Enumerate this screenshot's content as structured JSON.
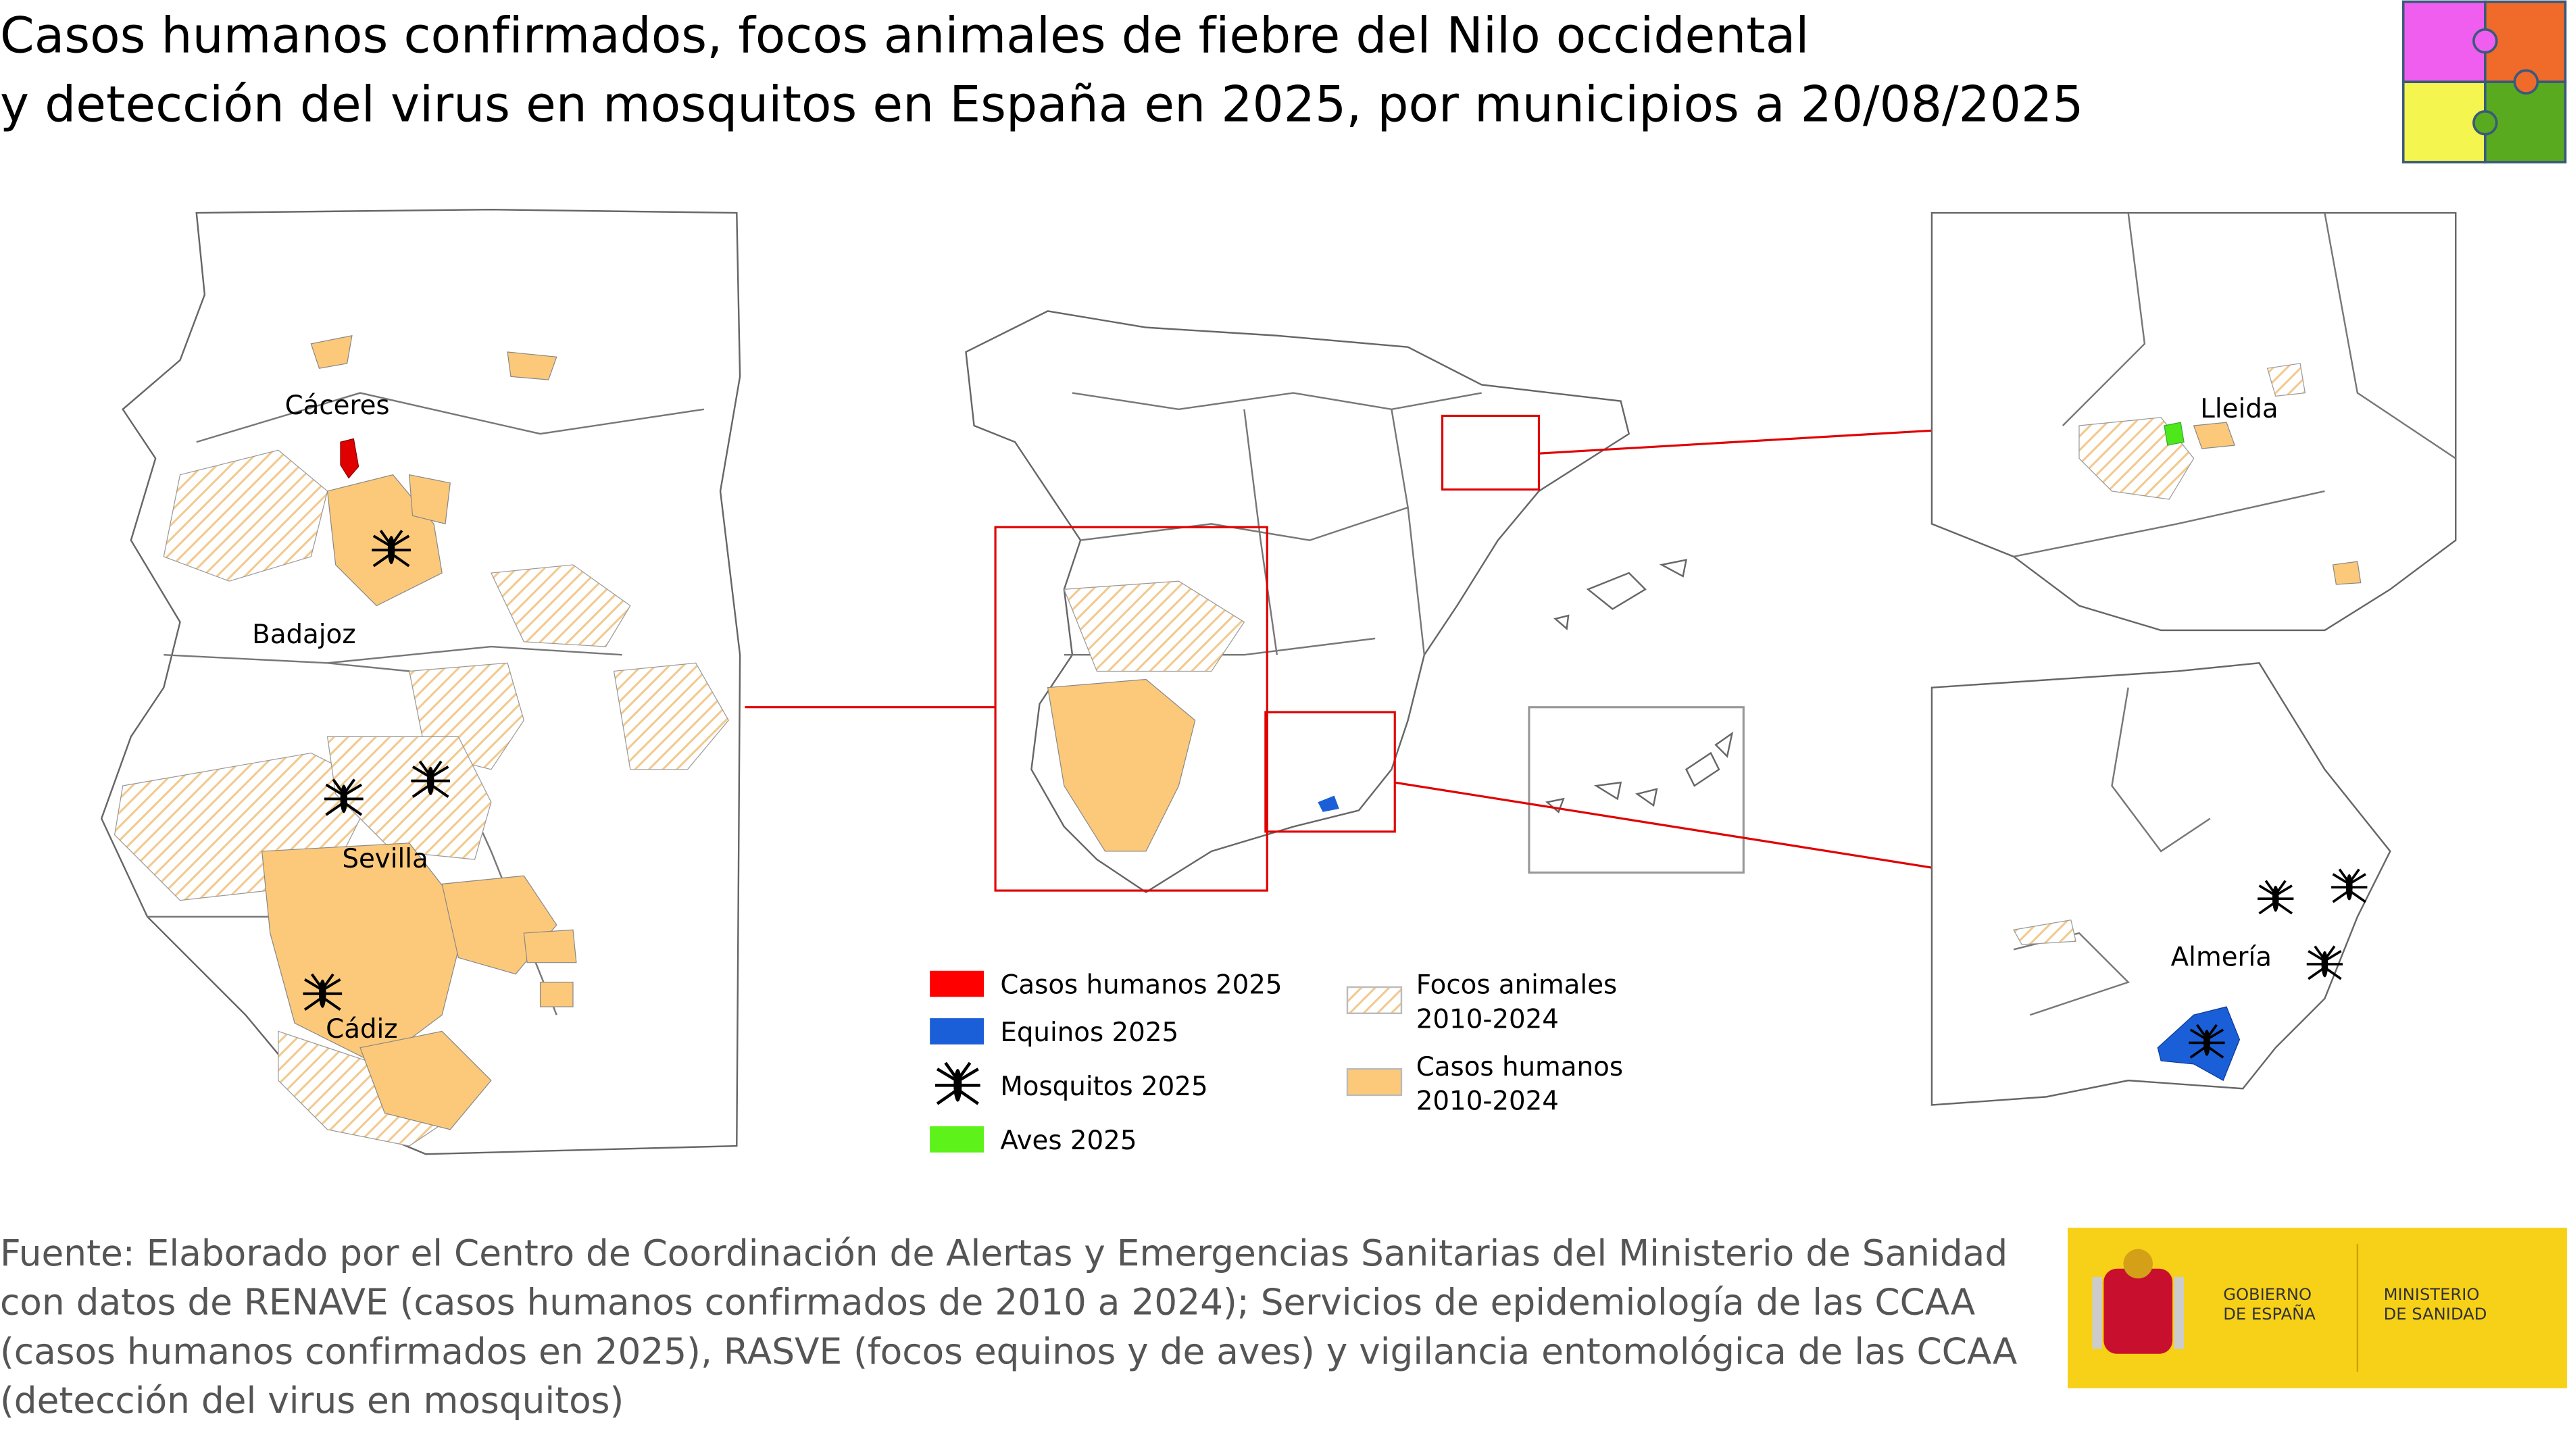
{
  "header": {
    "title_lines": [
      "Casos humanos confirmados, focos animales de fiebre del Nilo occidental",
      "y detección del virus en mosquitos en España en 2025, por municipios a 20/08/2025"
    ]
  },
  "maps": {
    "left": {
      "labels": [
        "Cáceres",
        "Badajoz",
        "Sevilla",
        "Cádiz"
      ]
    },
    "right_top": {
      "labels": [
        "Lleida"
      ]
    },
    "right_bottom": {
      "labels": [
        "Almería"
      ]
    }
  },
  "legend": {
    "items": [
      {
        "lines": [
          "Casos humanos 2025"
        ]
      },
      {
        "lines": [
          "Equinos 2025"
        ]
      },
      {
        "lines": [
          "Mosquitos 2025"
        ]
      },
      {
        "lines": [
          "Aves 2025"
        ]
      },
      {
        "lines": [
          "Focos animales",
          "2010-2024"
        ]
      },
      {
        "lines": [
          "Casos humanos",
          "2010-2024"
        ]
      }
    ]
  },
  "footer": {
    "source_lines": [
      "Fuente: Elaborado por el Centro de Coordinación de Alertas y Emergencias Sanitarias del Ministerio de Sanidad",
      "con datos de RENAVE (casos humanos confirmados de 2010 a 2024); Servicios de epidemiología de las CCAA",
      "(casos humanos confirmados en 2025), RASVE (focos equinos y de aves) y vigilancia entomológica de las CCAA",
      "(detección del virus en mosquitos)"
    ]
  },
  "logo": {
    "gobierno": [
      "GOBIERNO",
      "DE ESPAÑA"
    ],
    "ministerio": [
      "MINISTERIO",
      "DE SANIDAD"
    ]
  }
}
